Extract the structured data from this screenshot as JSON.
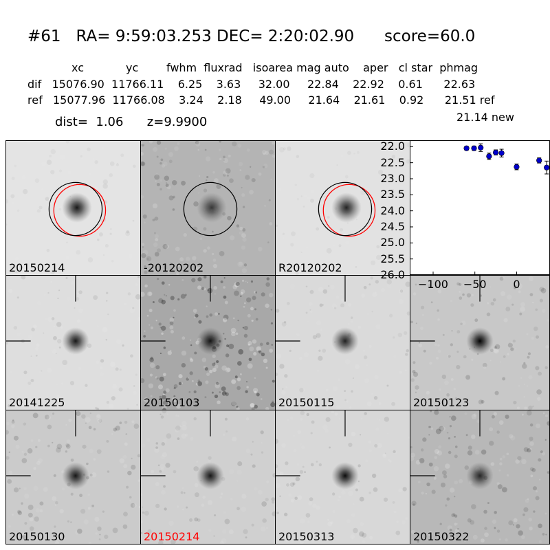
{
  "title": "#61   RA= 9:59:03.253 DEC= 2:20:02.90      score=60.0",
  "header": {
    "columns_line": "xc            yc        fwhm  fluxrad   isoarea mag auto    aper   cl star  phmag",
    "dif_line": "dif   15076.90  11766.11    6.25    3.63     32.00     22.84    22.92    0.61      22.63",
    "ref_line": "ref   15077.96  11766.08    3.24    2.18     49.00     21.64    21.61    0.92      21.51 ref",
    "new_line": "21.14 new",
    "dist_line": "dist=  1.06      z=9.9900"
  },
  "top_tiles": [
    {
      "label": "20150214",
      "bg": "#e4e4e4",
      "noise": 0.06,
      "star": 0.9,
      "black_circle": true,
      "red_circle": true
    },
    {
      "label": "-20120202",
      "bg": "#b4b4b4",
      "noise": 0.18,
      "star": 0.7,
      "black_circle": true,
      "red_circle": false
    },
    {
      "label": "R20120202",
      "bg": "#e2e2e2",
      "noise": 0.05,
      "star": 0.85,
      "black_circle": true,
      "red_circle": true
    }
  ],
  "grid_tiles": [
    {
      "label": "20141225",
      "bg": "#dedede",
      "noise": 0.1,
      "star": 0.9,
      "highlight": false
    },
    {
      "label": "20150103",
      "bg": "#a8a8a8",
      "noise": 0.35,
      "star": 0.9,
      "highlight": false
    },
    {
      "label": "20150115",
      "bg": "#dadada",
      "noise": 0.1,
      "star": 0.85,
      "highlight": false
    },
    {
      "label": "20150123",
      "bg": "#c8c8c8",
      "noise": 0.16,
      "star": 1.0,
      "highlight": false
    },
    {
      "label": "20150130",
      "bg": "#cbcbcb",
      "noise": 0.16,
      "star": 0.9,
      "highlight": false
    },
    {
      "label": "20150214",
      "bg": "#d0d0d0",
      "noise": 0.12,
      "star": 0.9,
      "highlight": true
    },
    {
      "label": "20150313",
      "bg": "#d8d8d8",
      "noise": 0.12,
      "star": 0.95,
      "highlight": false
    },
    {
      "label": "20150322",
      "bg": "#b8b8b8",
      "noise": 0.2,
      "star": 0.8,
      "highlight": false
    }
  ],
  "colors": {
    "highlight_label": "#ff0000",
    "marker": "#0000cc",
    "circle_red": "#ff0000",
    "circle_black": "#000000"
  },
  "chart_data": {
    "type": "scatter",
    "title": "",
    "xlabel": "",
    "ylabel": "",
    "x_ticks": [
      "−100",
      "−50",
      "0"
    ],
    "x_tick_values": [
      -100,
      -50,
      0
    ],
    "y_ticks": [
      "22.0",
      "22.5",
      "23.0",
      "23.5",
      "24.0",
      "24.5",
      "25.0",
      "25.5",
      "26.0"
    ],
    "y_tick_values": [
      22.0,
      22.5,
      23.0,
      23.5,
      24.0,
      24.5,
      25.0,
      25.5,
      26.0
    ],
    "xlim": [
      -128,
      40
    ],
    "ylim": [
      26.0,
      21.8
    ],
    "y_inverted": true,
    "series": [
      {
        "points": [
          {
            "x": -60,
            "y": 22.05,
            "err": 0.06
          },
          {
            "x": -51,
            "y": 22.05,
            "err": 0.07
          },
          {
            "x": -43,
            "y": 22.03,
            "err": 0.12
          },
          {
            "x": -33,
            "y": 22.3,
            "err": 0.1
          },
          {
            "x": -25,
            "y": 22.18,
            "err": 0.08
          },
          {
            "x": -18,
            "y": 22.2,
            "err": 0.12
          },
          {
            "x": 0,
            "y": 22.63,
            "err": 0.09
          },
          {
            "x": 27,
            "y": 22.43,
            "err": 0.08
          },
          {
            "x": 36,
            "y": 22.65,
            "err": 0.2
          }
        ]
      }
    ]
  }
}
